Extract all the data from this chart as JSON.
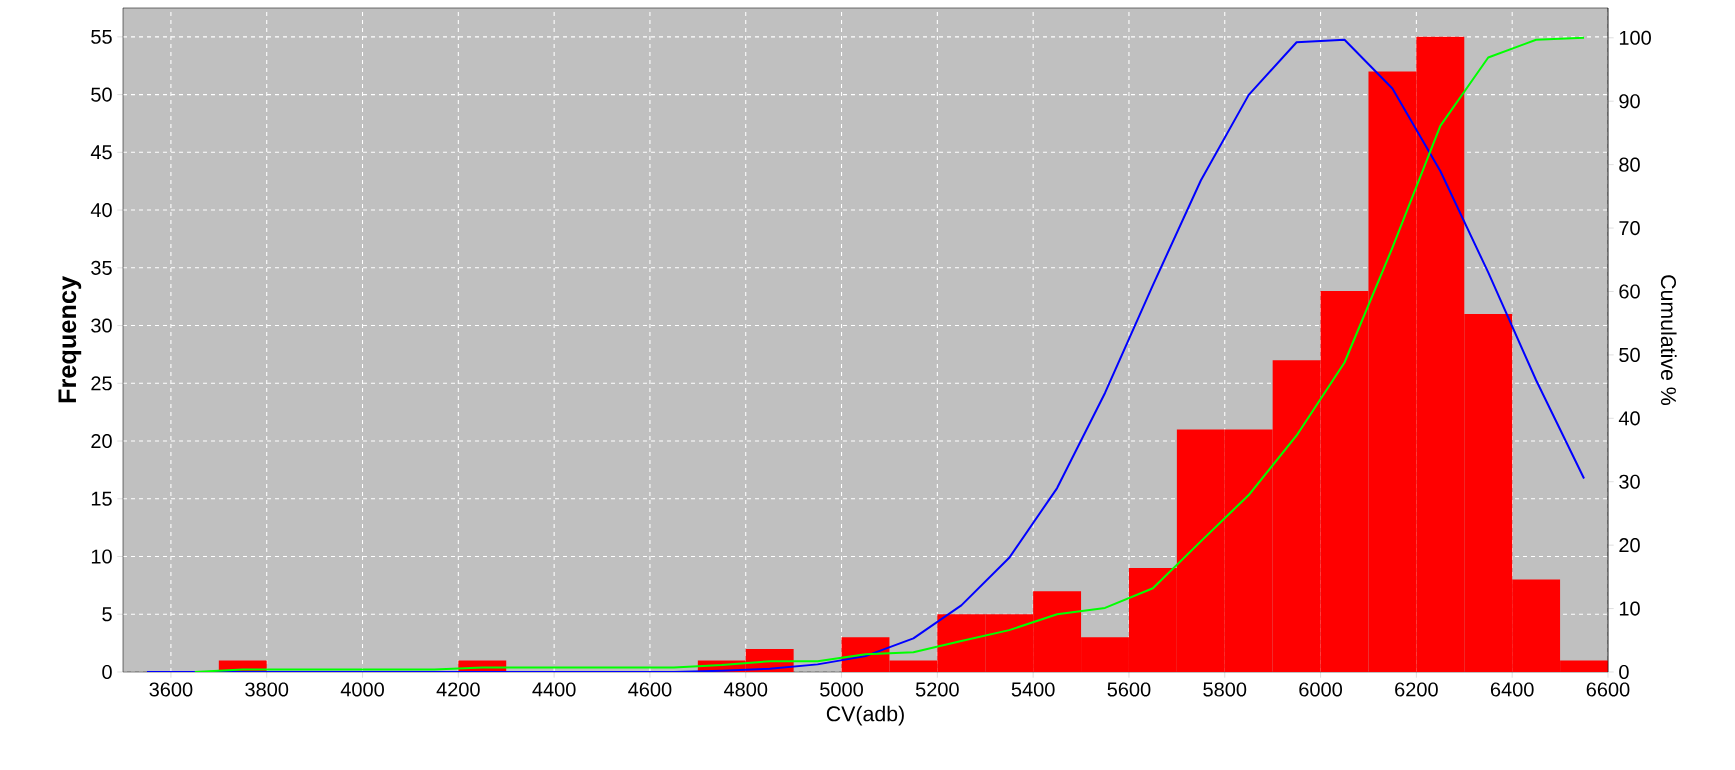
{
  "chart_data": {
    "type": "histogram",
    "xlabel": "CV(adb)",
    "ylabel": "Frequency",
    "y2label": "Cumulative %",
    "xlim": [
      3500,
      6600
    ],
    "xticks": [
      3600,
      3800,
      4000,
      4200,
      4400,
      4600,
      4800,
      5000,
      5200,
      5400,
      5600,
      5800,
      6000,
      6200,
      6400,
      6600
    ],
    "ylim": [
      0,
      57.5
    ],
    "yticks": [
      0,
      5,
      10,
      15,
      20,
      25,
      30,
      35,
      40,
      45,
      50,
      55
    ],
    "y2lim": [
      0,
      104.7
    ],
    "y2ticks": [
      0,
      10,
      20,
      30,
      40,
      50,
      60,
      70,
      80,
      90,
      100
    ],
    "grid": true,
    "series": [
      {
        "color": "#ff0000",
        "bins": [
          3500,
          3600,
          3700,
          3800,
          3900,
          4000,
          4100,
          4200,
          4300,
          4400,
          4500,
          4600,
          4700,
          4800,
          4900,
          5000,
          5100,
          5200,
          5300,
          5400,
          5500,
          5600,
          5700,
          5800,
          5900,
          6000,
          6100,
          6200,
          6300,
          6400,
          6500,
          6600
        ],
        "values": [
          0,
          0,
          1,
          0,
          0,
          0,
          0,
          1,
          0,
          0,
          0,
          0,
          1,
          2,
          0,
          3,
          1,
          5,
          5,
          7,
          3,
          9,
          21,
          21,
          27,
          33,
          52,
          55,
          31,
          8,
          1
        ]
      },
      {
        "type": "line",
        "axis": "y2",
        "color": "#0000ff",
        "x": [
          3550,
          3650,
          3750,
          3850,
          3950,
          4050,
          4150,
          4250,
          4350,
          4450,
          4550,
          4650,
          4750,
          4850,
          4950,
          5050,
          5150,
          5250,
          5350,
          5450,
          5550,
          5650,
          5750,
          5850,
          5950,
          6050,
          6150,
          6250,
          6350,
          6450,
          6550
        ],
        "values": [
          0,
          0,
          0,
          0,
          0,
          0,
          0,
          0,
          0,
          0,
          0,
          0,
          0.2,
          0.5,
          1.2,
          2.5,
          5.3,
          10.5,
          18,
          29,
          44,
          61,
          77.5,
          91,
          99.3,
          99.7,
          92,
          79,
          63,
          46,
          30.5
        ]
      },
      {
        "type": "line",
        "axis": "y2",
        "color": "#00ff00",
        "x": [
          3650,
          3750,
          3850,
          3950,
          4050,
          4150,
          4250,
          4350,
          4450,
          4550,
          4650,
          4750,
          4850,
          4950,
          5050,
          5150,
          5250,
          5350,
          5450,
          5550,
          5650,
          5750,
          5850,
          5950,
          6050,
          6150,
          6250,
          6350,
          6450,
          6550
        ],
        "values": [
          0,
          0.4,
          0.4,
          0.4,
          0.4,
          0.4,
          0.7,
          0.7,
          0.7,
          0.7,
          0.7,
          1.1,
          1.7,
          1.7,
          2.8,
          3.1,
          4.9,
          6.6,
          9.1,
          10.1,
          13.2,
          20.6,
          27.9,
          37.3,
          48.8,
          66.9,
          86.1,
          96.9,
          99.7,
          100
        ]
      }
    ]
  }
}
